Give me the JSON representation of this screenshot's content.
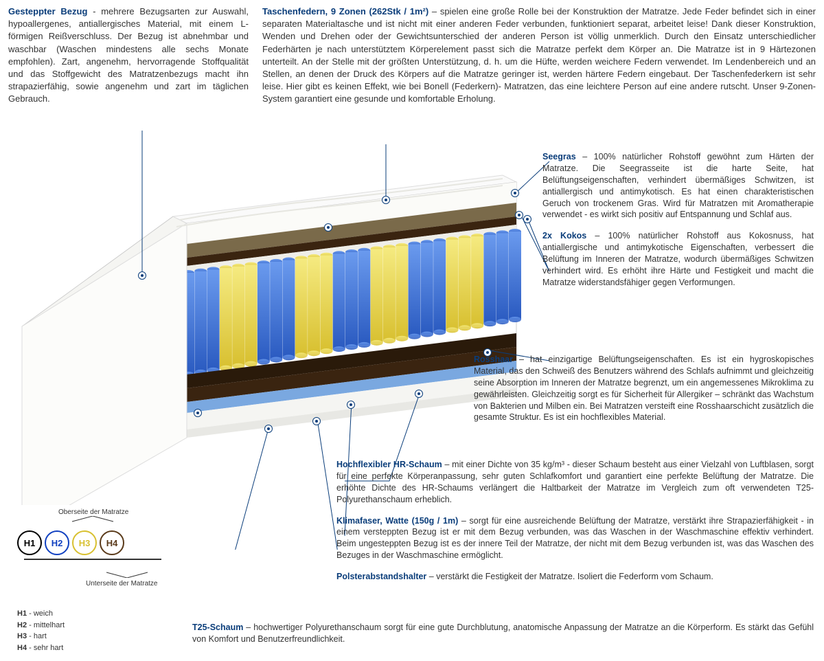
{
  "intro": {
    "bezug_title": "Gesteppter Bezug",
    "bezug_text": " - mehrere Bezugsarten zur Auswahl, hypoallergenes, antiallergisches Material, mit einem L-förmigen Reißverschluss. Der Bezug ist abnehmbar und waschbar (Waschen mindestens alle sechs Monate empfohlen). Zart, angenehm, hervorragende Stoffqualität und das Stoffgewicht des Matratzenbezugs macht ihn strapazierfähig, sowie angenehm und zart im täglichen Gebrauch.",
    "federn_title": "Taschenfedern, 9 Zonen (262Stk / 1m²)",
    "federn_text": " – spielen eine große Rolle bei der Konstruktion der Matratze. Jede Feder befindet sich in einer separaten Materialtasche und ist nicht mit einer anderen Feder verbunden, funktioniert separat, arbeitet leise! Dank dieser Konstruktion, Wenden und Drehen oder der Gewichtsunterschied der anderen Person ist völlig unmerklich. Durch den Einsatz unterschiedlicher Federhärten je nach unterstütztem Körperelement passt sich die Matratze perfekt dem Körper an. Die Matratze ist in 9 Härtezonen unterteilt. An der Stelle mit der größten Unterstützung, d. h. um die Hüfte, werden weichere Federn verwendet. Im Lendenbereich und an Stellen, an denen der Druck des Körpers auf die Matratze geringer ist, werden härtere Federn eingebaut. Der Taschenfederkern ist sehr leise. Hier gibt es keinen Effekt, wie bei Bonell (Federkern)- Matratzen, das eine leichtere Person auf eine andere rutscht. Unser 9-Zonen-System garantiert eine gesunde und komfortable Erholung."
  },
  "features": {
    "seegras_t": "Seegras",
    "seegras": " – 100% natürlicher Rohstoff gewöhnt zum Härten der Matratze. Die Seegrasseite ist die harte Seite, hat Belüftungseigenschaften, verhindert übermäßiges Schwitzen, ist antiallergisch und antimykotisch. Es hat einen charakteristischen Geruch von trockenem Gras. Wird für Matratzen mit Aromatherapie verwendet - es wirkt sich positiv auf Entspannung und Schlaf aus.",
    "kokos_t": "2x Kokos",
    "kokos": " – 100% natürlicher Rohstoff aus Kokosnuss, hat antiallergische und antimykotische Eigenschaften, verbessert die Belüftung im Inneren der Matratze, wodurch übermäßiges Schwitzen verhindert wird. Es erhöht ihre Härte und Festigkeit und macht die Matratze widerstandsfähiger gegen Verformungen.",
    "rosshaar_t": "Rosshaar",
    "rosshaar": " – hat einzigartige Belüftungseigenschaften. Es ist ein hygroskopisches Material, das den Schweiß des Benutzers während des Schlafs aufnimmt und gleichzeitig seine Absorption im Inneren der Matratze begrenzt, um ein angemessenes Mikroklima zu gewährleisten. Gleichzeitig sorgt es für Sicherheit für Allergiker – schränkt das Wachstum von Bakterien und Milben ein. Bei Matratzen versteift eine Rosshaarschicht zusätzlich die gesamte Struktur. Es ist ein hochflexibles Material.",
    "hrschaum_t": "Hochflexibler HR-Schaum",
    "hrschaum": " – mit einer Dichte von 35 kg/m³ - dieser Schaum besteht aus einer Vielzahl von Luftblasen, sorgt für eine perfekte Körperanpassung, sehr guten Schlafkomfort und garantiert eine perfekte Belüftung der Matratze. Die erhöhte Dichte des HR-Schaums verlängert die Haltbarkeit der Matratze im Vergleich zum oft verwendeten T25-Polyurethanschaum erheblich.",
    "klima_t": "Klimafaser, Watte (150g / 1m)",
    "klima": " – sorgt für eine ausreichende Belüftung der Matratze, verstärkt ihre Strapazierfähigkeit - in einem versteppten Bezug ist er mit dem Bezug verbunden, was das Waschen in der Waschmaschine effektiv verhindert. Beim ungesteppten Bezug ist es der innere Teil der Matratze, der nicht mit dem Bezug verbunden ist, was das Waschen des Bezuges in der Waschmaschine ermöglicht.",
    "polster_t": "Polsterabstandshalter",
    "polster": " – verstärkt die Festigkeit der Matratze. Isoliert die Federform vom Schaum.",
    "t25_t": "T25-Schaum",
    "t25": " – hochwertiger Polyurethanschaum sorgt für eine gute Durchblutung, anatomische Anpassung der Matratze an die Körperform. Es stärkt das Gefühl von Komfort und Benutzerfreundlichkeit."
  },
  "hardness": {
    "top_label": "Oberseite der Matratze",
    "bottom_label": "Unterseite der Matratze",
    "circles": [
      {
        "label": "H1",
        "color": "#000000"
      },
      {
        "label": "H2",
        "color": "#1040c0"
      },
      {
        "label": "H3",
        "color": "#d8c030"
      },
      {
        "label": "H4",
        "color": "#5a3a1a"
      }
    ],
    "legend": [
      {
        "k": "H1",
        "v": " - weich"
      },
      {
        "k": "H2",
        "v": " - mittelhart"
      },
      {
        "k": "H3",
        "v": " - hart"
      },
      {
        "k": "H4",
        "v": " - sehr hart"
      }
    ]
  },
  "colors": {
    "title": "#0a3d7a",
    "spring_blue": "#3a6fd8",
    "spring_yellow": "#e8d84a",
    "kokos": "#3a2410",
    "seegras": "#7a6a4a",
    "foam_white": "#f5f5f2",
    "foam_blue": "#7aa8e0",
    "rosshaar": "#2a1a0a"
  }
}
